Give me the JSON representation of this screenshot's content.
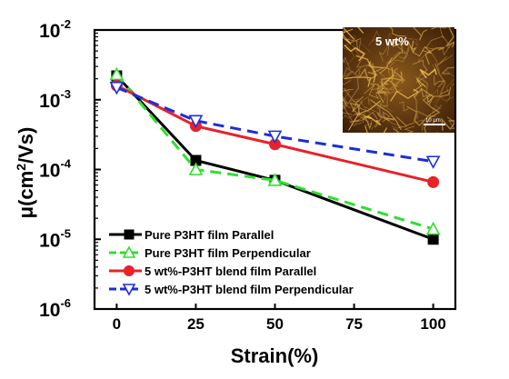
{
  "chart_data": {
    "type": "line",
    "xlabel": "Strain(%)",
    "ylabel_main": "μ(cm",
    "ylabel_sup": "2",
    "ylabel_tail": "/Vs)",
    "x_ticks": [
      "0",
      "25",
      "50",
      "75",
      "100"
    ],
    "y_ticks": [
      {
        "base": "10",
        "exp": "-6"
      },
      {
        "base": "10",
        "exp": "-5"
      },
      {
        "base": "10",
        "exp": "-4"
      },
      {
        "base": "10",
        "exp": "-3"
      },
      {
        "base": "10",
        "exp": "-2"
      }
    ],
    "xlim": [
      -7,
      107
    ],
    "ylim": [
      1e-06,
      0.01
    ],
    "yscale": "log",
    "legend_position": "bottom-left",
    "series": [
      {
        "name": "Pure P3HT film   Parallel",
        "color": "#000000",
        "line_style": "solid",
        "marker": "square-filled",
        "x": [
          0,
          25,
          50,
          100
        ],
        "y": [
          0.0022,
          0.000135,
          7e-05,
          1e-05
        ]
      },
      {
        "name": "Pure P3HT film   Perpendicular",
        "color": "#2ee02e",
        "line_style": "dashed",
        "marker": "triangle-up-open",
        "x": [
          0,
          25,
          50,
          100
        ],
        "y": [
          0.0023,
          0.0001,
          7e-05,
          1.4e-05
        ]
      },
      {
        "name": "5 wt%-P3HT blend film  Parallel",
        "color": "#e8212a",
        "line_style": "solid",
        "marker": "circle-filled",
        "x": [
          0,
          25,
          50,
          100
        ],
        "y": [
          0.0016,
          0.00042,
          0.00023,
          6.6e-05
        ]
      },
      {
        "name": "5 wt%-P3HT blend film  Perpendicular",
        "color": "#1d2ed8",
        "line_style": "dashed",
        "marker": "triangle-down-open",
        "x": [
          0,
          25,
          50,
          100
        ],
        "y": [
          0.0015,
          0.0005,
          0.0003,
          0.00013
        ]
      }
    ],
    "inset": {
      "label": "5 wt%",
      "scale_bar_text": "10 μm"
    }
  }
}
